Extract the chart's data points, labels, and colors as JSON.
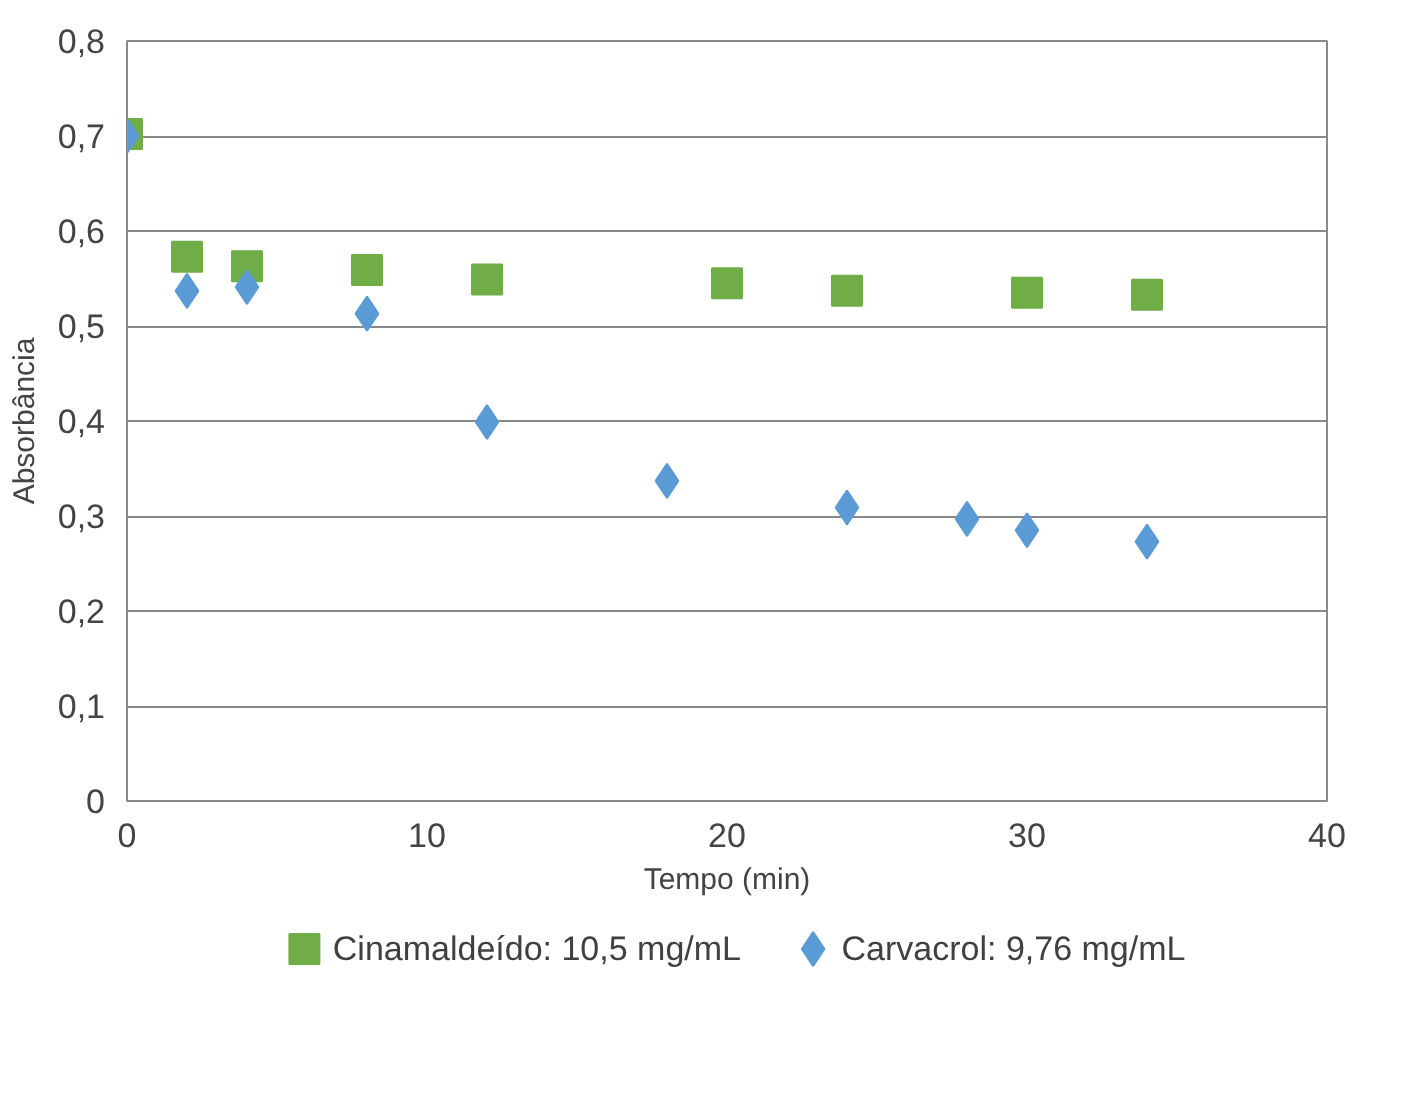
{
  "chart_data": {
    "type": "scatter",
    "xlabel": "Tempo (min)",
    "ylabel": "Absorbância",
    "xlim": [
      0,
      40
    ],
    "xticks": [
      0,
      10,
      20,
      30,
      40
    ],
    "ylim": [
      0,
      0.8
    ],
    "yticks": [
      0,
      {
        "value": 0.1,
        "label": "0,1"
      },
      {
        "value": 0.2,
        "label": "0,2"
      },
      {
        "value": 0.3,
        "label": "0,3"
      },
      {
        "value": 0.4,
        "label": "0,4"
      },
      {
        "value": 0.5,
        "label": "0,5"
      },
      {
        "value": 0.6,
        "label": "0,6"
      },
      {
        "value": 0.7,
        "label": "0,7"
      },
      {
        "value": 0.8,
        "label": "0,8"
      }
    ],
    "grid": "y",
    "legend": "bottom",
    "series": [
      {
        "name": "Cinamaldeído: 10,5 mg/mL",
        "color": "#70ad47",
        "marker": "square",
        "x": [
          0,
          2,
          4,
          8,
          12,
          20,
          24,
          30,
          34
        ],
        "values": [
          0.702,
          0.573,
          0.563,
          0.559,
          0.549,
          0.545,
          0.537,
          0.535,
          0.533
        ]
      },
      {
        "name": "Carvacrol: 9,76 mg/mL",
        "color": "#5b9bd5",
        "marker": "diamond",
        "x": [
          0,
          2,
          4,
          8,
          12,
          18,
          24,
          28,
          30,
          34
        ],
        "values": [
          0.7,
          0.537,
          0.541,
          0.513,
          0.399,
          0.337,
          0.309,
          0.297,
          0.285,
          0.273
        ]
      }
    ]
  }
}
